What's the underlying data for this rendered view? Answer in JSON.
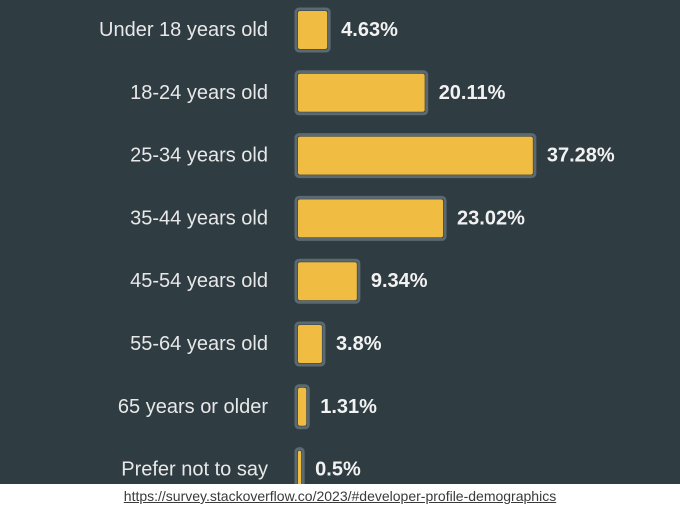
{
  "chart_data": {
    "type": "bar",
    "orientation": "horizontal",
    "categories": [
      "Under 18 years old",
      "18-24 years old",
      "25-34 years old",
      "35-44 years old",
      "45-54 years old",
      "55-64 years old",
      "65 years or older",
      "Prefer not to say"
    ],
    "values": [
      4.63,
      20.11,
      37.28,
      23.02,
      9.34,
      3.8,
      1.31,
      0.5
    ],
    "value_labels": [
      "4.63%",
      "20.11%",
      "37.28%",
      "23.02%",
      "9.34%",
      "3.8%",
      "1.31%",
      "0.5%"
    ],
    "bar_color": "#f0bc42",
    "background_color": "#2f3c42",
    "grid": false,
    "legend": "none"
  },
  "source": {
    "url_text": "https://survey.stackoverflow.co/2023/#developer-profile-demographics"
  }
}
